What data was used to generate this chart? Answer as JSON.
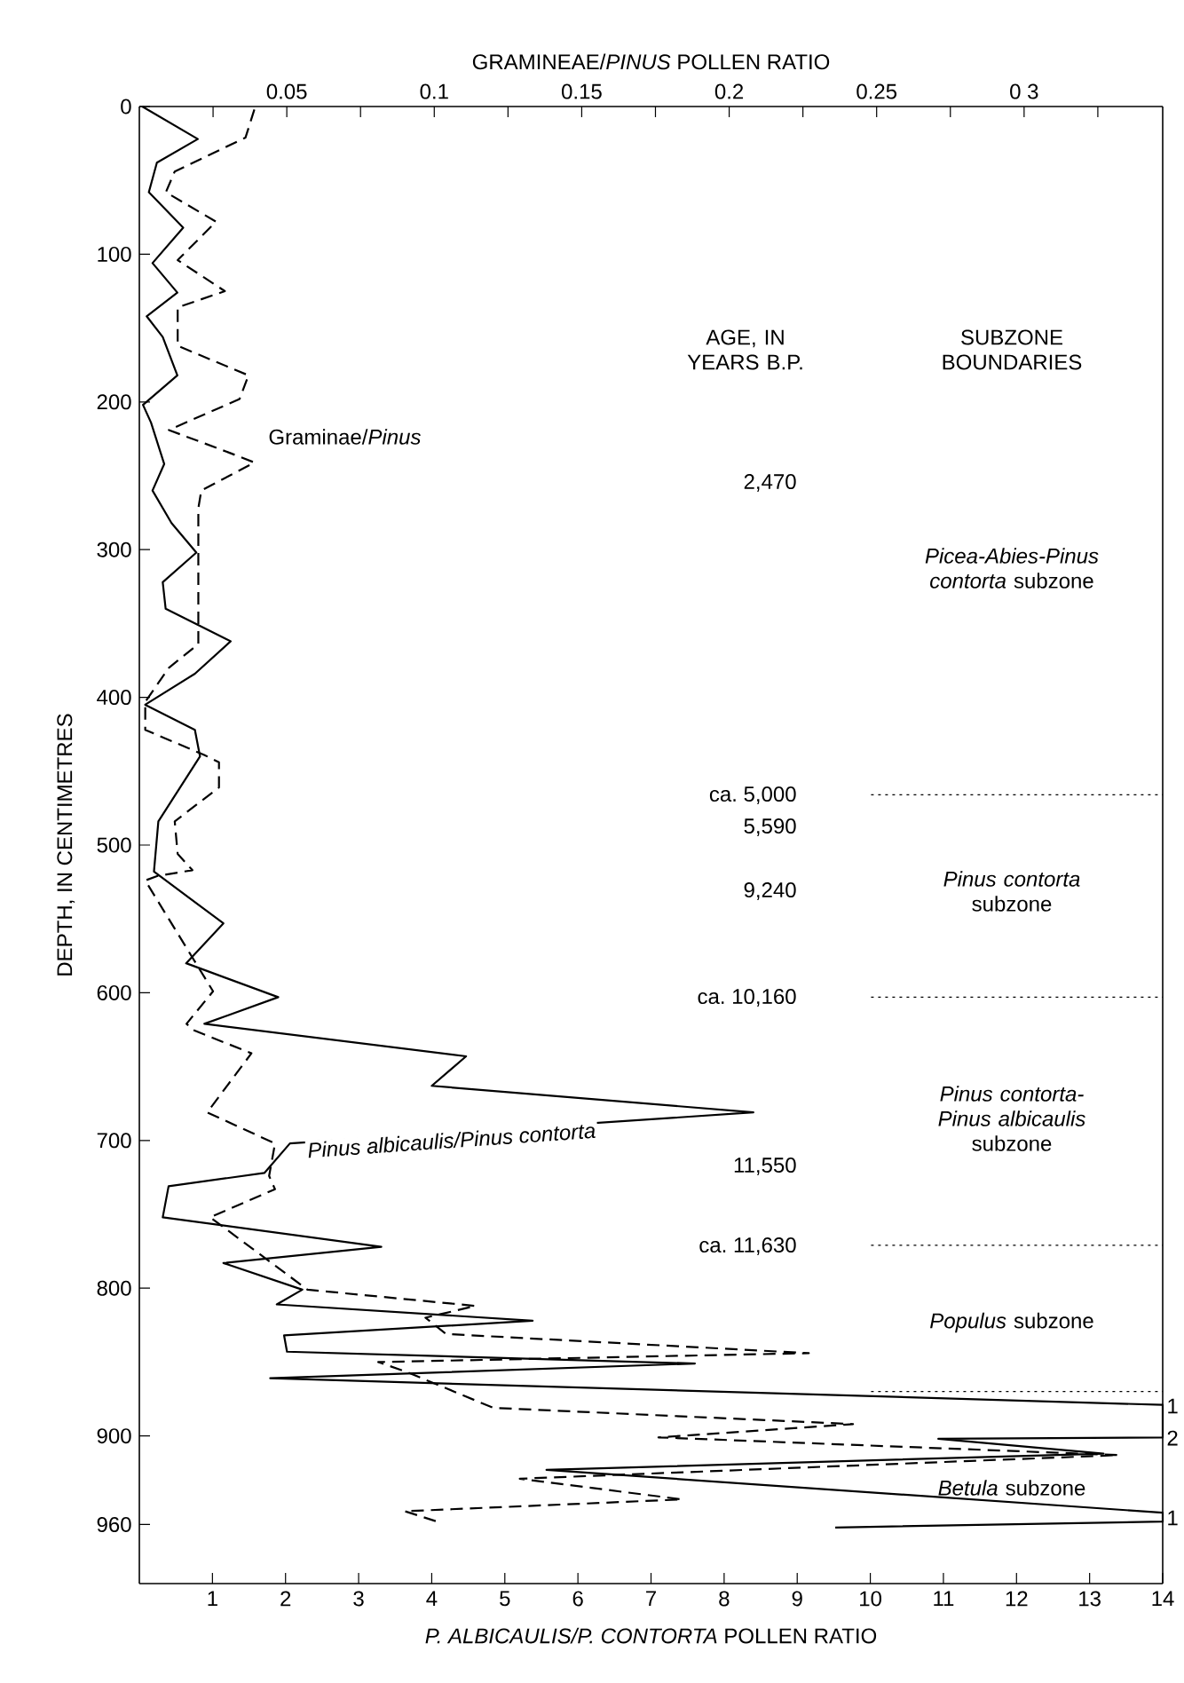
{
  "chart_data": {
    "type": "line",
    "xlabel": "*P. ALBICAULIS/P. CONTORTA* POLLEN RATIO",
    "x2label": "GRAMINEAE/*PINUS* POLLEN RATIO",
    "ylabel": "DEPTH, IN CENTIMETRES",
    "xlim": [
      0,
      14
    ],
    "xticks": [
      1,
      2,
      3,
      4,
      5,
      6,
      7,
      8,
      9,
      10,
      11,
      12,
      13,
      14
    ],
    "x2lim": [
      0,
      0.347
    ],
    "x2ticks": [
      {
        "value": 0.025,
        "label": null
      },
      0.05,
      {
        "value": 0.075,
        "label": null
      },
      0.1,
      {
        "value": 0.125,
        "label": null
      },
      0.15,
      {
        "value": 0.175,
        "label": null
      },
      0.2,
      {
        "value": 0.225,
        "label": null
      },
      0.25,
      {
        "value": 0.275,
        "label": null
      },
      {
        "value": 0.3,
        "label": "0 3"
      },
      {
        "value": 0.325,
        "label": null
      }
    ],
    "ylim": [
      1000,
      0
    ],
    "yticks": [
      0,
      100,
      200,
      300,
      400,
      500,
      600,
      700,
      800,
      900,
      960
    ],
    "grid": false,
    "marker": "none",
    "series": [
      {
        "name": "Pinus albicaulis/Pinus contorta",
        "color": "#000000",
        "line_style": "solid",
        "x": [
          0.04,
          0.8,
          0.24,
          0.13,
          0.6,
          0.18,
          0.52,
          0.1,
          0.32,
          0.52,
          0.05,
          0.16,
          0.34,
          0.18,
          0.44,
          0.78,
          0.32,
          0.36,
          1.25,
          0.76,
          0.08,
          0.76,
          0.83,
          0.26,
          0.2,
          1.15,
          0.64,
          1.9,
          0.89,
          4.47,
          4.0,
          8.4,
          2.06,
          1.71,
          0.4,
          0.32,
          3.31,
          1.15,
          2.23,
          1.88,
          5.38,
          1.98,
          2.02,
          7.6,
          1.79,
          14,
          14,
          10.93,
          13.19,
          5.57,
          14,
          14,
          9.52
        ],
        "values": [
          0,
          22,
          38,
          58,
          82,
          106,
          126,
          142,
          156,
          182,
          202,
          214,
          242,
          260,
          282,
          302,
          322,
          340,
          362,
          384,
          405,
          422,
          440,
          484,
          518,
          553,
          580,
          603,
          621,
          643,
          663,
          681,
          702,
          722,
          731,
          752,
          772,
          783,
          801,
          811,
          822,
          832,
          843,
          851,
          861,
          879,
          901,
          902,
          912,
          923,
          952,
          958,
          962
        ]
      },
      {
        "name": "Graminae/*Pinus*",
        "color": "#000000",
        "line_style": "dashed",
        "axis": "x2",
        "x": [
          0.039,
          0.036,
          0.012,
          0.009,
          0.026,
          0.013,
          0.029,
          0.013,
          0.013,
          0.037,
          0.034,
          0.01,
          0.03,
          0.039,
          0.021,
          0.02,
          0.02,
          0.01,
          0.002,
          0.002,
          0.022,
          0.027,
          0.027,
          0.012,
          0.013,
          0.018,
          0.006,
          0.002,
          0.025,
          0.016,
          0.018,
          0.038,
          0.023,
          0.046,
          0.044,
          0.046,
          0.024,
          0.057,
          0.114,
          0.097,
          0.104,
          0.227,
          0.081,
          0.091,
          0.12,
          0.242,
          0.176,
          0.332,
          0.129,
          0.184,
          0.09,
          0.101
        ],
        "values": [
          2,
          21,
          44,
          58,
          78,
          104,
          125,
          136,
          162,
          182,
          198,
          219,
          234,
          241,
          260,
          272,
          364,
          380,
          403,
          422,
          439,
          444,
          461,
          484,
          506,
          517,
          521,
          524,
          599,
          621,
          625,
          641,
          681,
          702,
          724,
          733,
          752,
          801,
          812,
          820,
          831,
          844,
          850,
          857,
          881,
          892,
          901,
          913,
          929,
          943,
          951,
          958
        ]
      }
    ],
    "ref_lines": [
      {
        "axis": "y",
        "value": 466,
        "line_style": "dotted"
      },
      {
        "axis": "y",
        "value": 603,
        "line_style": "dotted"
      },
      {
        "axis": "y",
        "value": 771,
        "line_style": "dotted"
      },
      {
        "axis": "y",
        "value": 870,
        "line_style": "dotted"
      }
    ],
    "annotations": [
      "AGE, IN YEARS B.P.",
      "SUBZONE BOUNDARIES",
      "2,470",
      "ca. 5,000",
      "5,590",
      "9,240",
      "ca. 10,160",
      "11,550",
      "ca. 11,630",
      "*Picea-Abies-Pinus contorta* subzone",
      "*Pinus contorta* subzone",
      "*Pinus contorta-Pinus albicaulis* subzone",
      "*Populus* subzone",
      "*Betula* subzone",
      "1",
      "2",
      "1"
    ]
  }
}
